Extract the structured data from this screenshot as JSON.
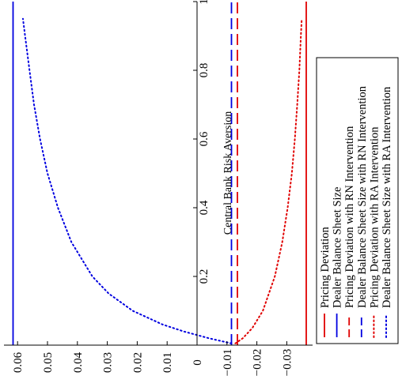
{
  "chart_data": {
    "type": "line",
    "orientation": "rotated-90-ccw",
    "xlabel": "Central Bank Risk Aversion",
    "ylabel": "",
    "xlim": [
      0,
      1
    ],
    "ylim": [
      -0.038,
      0.065
    ],
    "x_ticks": [
      0.2,
      0.4,
      0.6,
      0.8,
      1
    ],
    "x_tick_labels": [
      "0.2",
      "0.4",
      "0.6",
      "0.8",
      "1"
    ],
    "y_ticks": [
      0.06,
      0.05,
      0.04,
      0.03,
      0.02,
      0.01,
      0,
      -0.01,
      -0.02,
      -0.03
    ],
    "y_tick_labels": [
      "0.06",
      "0.05",
      "0.04",
      "0.03",
      "0.02",
      "0.01",
      "0",
      "−0.01",
      "−0.02",
      "−0.03"
    ],
    "grid": false,
    "legend_position": "bottom-right",
    "series": [
      {
        "name": "Pricing Deviation",
        "color": "#e00000",
        "style": "solid",
        "x": [
          0,
          1
        ],
        "y": [
          -0.0365,
          -0.0365
        ]
      },
      {
        "name": "Dealer Balance Sheet Size",
        "color": "#0000e0",
        "style": "solid",
        "x": [
          0,
          1
        ],
        "y": [
          0.0615,
          0.0615
        ]
      },
      {
        "name": "Pricing Deviation with RN Intervention",
        "color": "#e00000",
        "style": "dashed",
        "x": [
          0,
          1
        ],
        "y": [
          -0.0135,
          -0.0135
        ]
      },
      {
        "name": "Dealer Balance Sheet Size with RN Intervention",
        "color": "#0000e0",
        "style": "dashed",
        "x": [
          0,
          1
        ],
        "y": [
          -0.0115,
          -0.0115
        ]
      },
      {
        "name": "Pricing Deviation with RA Intervention",
        "color": "#e00000",
        "style": "dotted",
        "x": [
          0.005,
          0.02,
          0.05,
          0.1,
          0.2,
          0.3,
          0.4,
          0.5,
          0.6,
          0.7,
          0.8,
          0.9,
          0.95
        ],
        "y": [
          -0.0128,
          -0.0153,
          -0.0185,
          -0.022,
          -0.026,
          -0.0285,
          -0.0303,
          -0.0317,
          -0.0327,
          -0.0335,
          -0.0342,
          -0.0347,
          -0.035
        ]
      },
      {
        "name": "Dealer Balance Sheet Size with RA Intervention",
        "color": "#0000e0",
        "style": "dotted",
        "x": [
          0.005,
          0.02,
          0.04,
          0.06,
          0.1,
          0.15,
          0.2,
          0.3,
          0.4,
          0.5,
          0.6,
          0.7,
          0.8,
          0.9,
          0.95
        ],
        "y": [
          -0.0115,
          -0.004,
          0.0045,
          0.0115,
          0.0215,
          0.0295,
          0.035,
          0.042,
          0.0465,
          0.05,
          0.0525,
          0.0545,
          0.056,
          0.0575,
          0.0582
        ]
      }
    ]
  }
}
